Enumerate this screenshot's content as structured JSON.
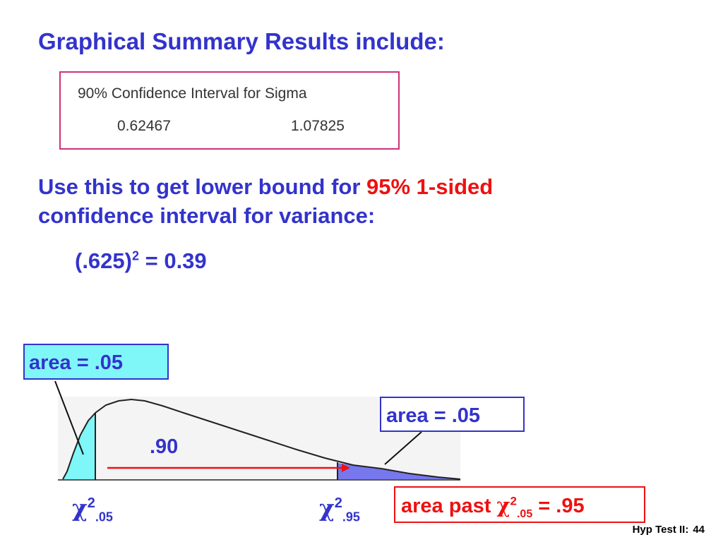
{
  "heading": "Graphical Summary Results include:",
  "ci_box": {
    "title": "90% Confidence Interval for Sigma",
    "lower": "0.62467",
    "upper": "1.07825"
  },
  "instruction": {
    "part1": "Use this to get lower bound for ",
    "highlight": "95% 1-sided",
    "part2": "confidence interval for variance:"
  },
  "calculation": {
    "base": "(.625)",
    "exponent": "2",
    "result": " = 0.39"
  },
  "chart": {
    "left_area_label": "area = .05",
    "right_area_label": "area = .05",
    "middle_label": ".90",
    "left_chi": {
      "symbol": "χ",
      "sup": "2",
      "sub": ".05"
    },
    "right_chi": {
      "symbol": "χ",
      "sup": "2",
      "sub": ".95"
    }
  },
  "area_past": {
    "prefix": "area past ",
    "symbol": "χ",
    "sup": "2",
    "sub": ".05",
    "suffix": " = .95"
  },
  "footer": {
    "label": "Hyp Test II:",
    "page": "44"
  },
  "colors": {
    "text_blue": "#3333cc",
    "highlight_red": "#ee1111",
    "left_tail_fill": "#7ff6f8",
    "right_tail_fill": "#7777ee"
  }
}
